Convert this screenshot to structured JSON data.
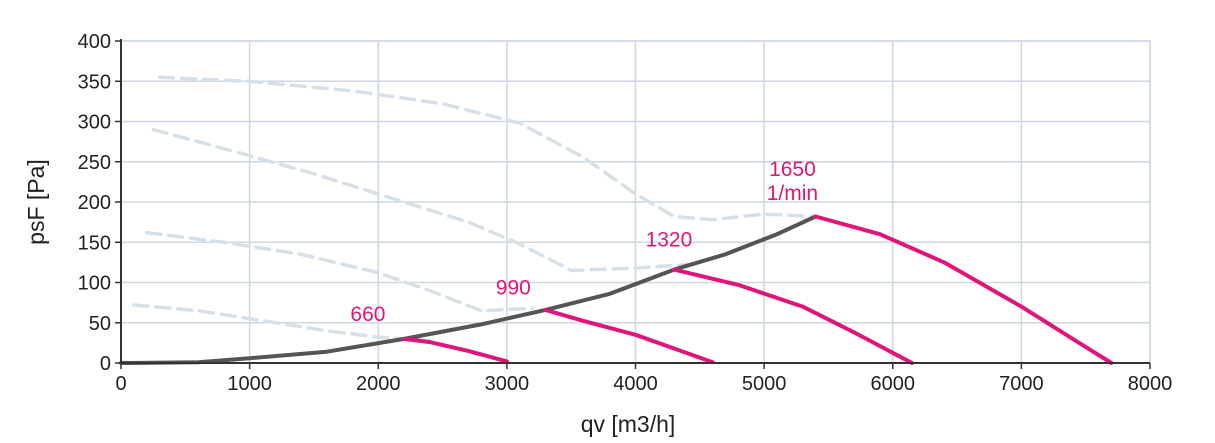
{
  "chart_data": {
    "type": "line",
    "xlabel": "qv [m3/h]",
    "ylabel": "psF [Pa]",
    "xlim": [
      0,
      8000
    ],
    "ylim": [
      0,
      400
    ],
    "x_ticks": [
      0,
      1000,
      2000,
      3000,
      4000,
      5000,
      6000,
      7000,
      8000
    ],
    "y_ticks": [
      0,
      50,
      100,
      150,
      200,
      250,
      300,
      350,
      400
    ],
    "grid": true,
    "colors": {
      "speed_curve": "#e0157a",
      "system_curve": "#555555",
      "dashed_curve": "#d7dfe8",
      "grid": "#cfd7e1",
      "axis": "#333333"
    },
    "dashed_series": [
      {
        "points": [
          [
            100,
            72
          ],
          [
            600,
            65
          ],
          [
            1000,
            55
          ],
          [
            1600,
            40
          ],
          [
            2000,
            32
          ],
          [
            2400,
            28
          ]
        ]
      },
      {
        "points": [
          [
            200,
            162
          ],
          [
            800,
            150
          ],
          [
            1400,
            135
          ],
          [
            2000,
            112
          ],
          [
            2400,
            90
          ],
          [
            2800,
            65
          ],
          [
            3200,
            68
          ]
        ]
      },
      {
        "points": [
          [
            250,
            290
          ],
          [
            900,
            262
          ],
          [
            1500,
            235
          ],
          [
            2100,
            205
          ],
          [
            2700,
            175
          ],
          [
            3100,
            148
          ],
          [
            3500,
            115
          ],
          [
            4000,
            118
          ],
          [
            4400,
            122
          ]
        ]
      },
      {
        "points": [
          [
            300,
            355
          ],
          [
            1000,
            350
          ],
          [
            1800,
            338
          ],
          [
            2500,
            322
          ],
          [
            3100,
            298
          ],
          [
            3600,
            255
          ],
          [
            4000,
            210
          ],
          [
            4300,
            182
          ],
          [
            4600,
            178
          ],
          [
            5000,
            185
          ],
          [
            5400,
            182
          ]
        ]
      }
    ],
    "system_curve": {
      "points": [
        [
          0,
          0
        ],
        [
          600,
          1
        ],
        [
          1000,
          6
        ],
        [
          1600,
          14
        ],
        [
          2200,
          30
        ],
        [
          2800,
          48
        ],
        [
          3300,
          66
        ],
        [
          3800,
          86
        ],
        [
          4300,
          116
        ],
        [
          4700,
          135
        ],
        [
          5100,
          160
        ],
        [
          5400,
          182
        ]
      ]
    },
    "speed_curves": [
      {
        "label": "660",
        "label_pos": [
          1920,
          52
        ],
        "points": [
          [
            2200,
            30
          ],
          [
            2400,
            26
          ],
          [
            2700,
            15
          ],
          [
            3000,
            2
          ]
        ]
      },
      {
        "label": "990",
        "label_pos": [
          3050,
          85
        ],
        "points": [
          [
            3300,
            66
          ],
          [
            3600,
            52
          ],
          [
            4000,
            35
          ],
          [
            4300,
            18
          ],
          [
            4600,
            1
          ]
        ]
      },
      {
        "label": "1320",
        "label_pos": [
          4260,
          145
        ],
        "points": [
          [
            4300,
            116
          ],
          [
            4800,
            97
          ],
          [
            5300,
            70
          ],
          [
            5700,
            38
          ],
          [
            6150,
            0
          ]
        ]
      },
      {
        "label": "1650",
        "label2": "1/min",
        "label_pos": [
          5220,
          232
        ],
        "points": [
          [
            5400,
            182
          ],
          [
            5900,
            160
          ],
          [
            6400,
            125
          ],
          [
            7000,
            70
          ],
          [
            7400,
            30
          ],
          [
            7700,
            0
          ]
        ]
      }
    ]
  }
}
